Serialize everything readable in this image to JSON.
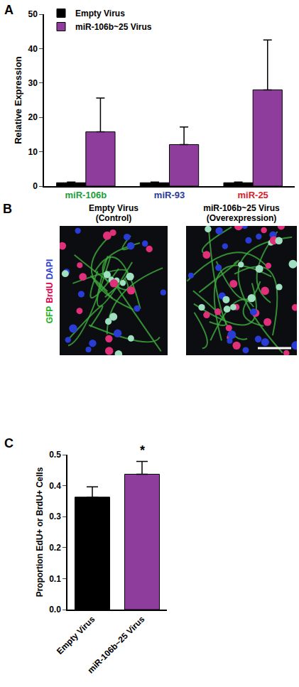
{
  "chart_data": [
    {
      "type": "bar",
      "panel": "A",
      "categories": [
        "miR-106b",
        "miR-93",
        "miR-25"
      ],
      "series": [
        {
          "name": "Empty Virus",
          "color": "#000000",
          "values": [
            1,
            1,
            1
          ],
          "errors": [
            0.2,
            0.2,
            0.2
          ]
        },
        {
          "name": "miR-106b~25 Virus",
          "color": "#8e3d9c",
          "values": [
            15.8,
            12.1,
            28.0
          ],
          "errors": [
            9.8,
            5.1,
            14.5
          ]
        }
      ],
      "y_label": "Relative Expression",
      "ylim": [
        0,
        50
      ],
      "yticks": [
        0,
        10,
        20,
        30,
        40,
        50
      ],
      "legend": "top left",
      "grid": false
    },
    {
      "type": "bar",
      "panel": "C",
      "categories": [
        "Empty Virus",
        "miR-106b~25 Virus"
      ],
      "values": [
        0.363,
        0.437
      ],
      "errors": [
        0.033,
        0.041
      ],
      "colors": [
        "#000000",
        "#8e3d9c"
      ],
      "y_label": "Proportion EdU+ or BrdU+ Cells",
      "ylim": [
        0,
        0.5
      ],
      "yticks": [
        {
          "value": 0,
          "label": "0.0"
        },
        0.1,
        0.2,
        0.3,
        0.4,
        {
          "value": 0.5,
          "label": "0.5"
        }
      ],
      "annotations": [
        {
          "text": "*",
          "category": "miR-106b~25 Virus"
        }
      ],
      "grid": false
    }
  ],
  "image_panel": {
    "panel": "B",
    "images": [
      {
        "title_lines": [
          "Empty Virus",
          "(Control)"
        ]
      },
      {
        "title_lines": [
          "miR-106b~25 Virus",
          "(Overexpression)"
        ]
      }
    ],
    "channels": [
      {
        "text": "GFP",
        "color": "#1db31d"
      },
      {
        "text": "BrdU",
        "color": "#e0004a"
      },
      {
        "text": "DAPI",
        "color": "#2a3cd6"
      }
    ]
  }
}
